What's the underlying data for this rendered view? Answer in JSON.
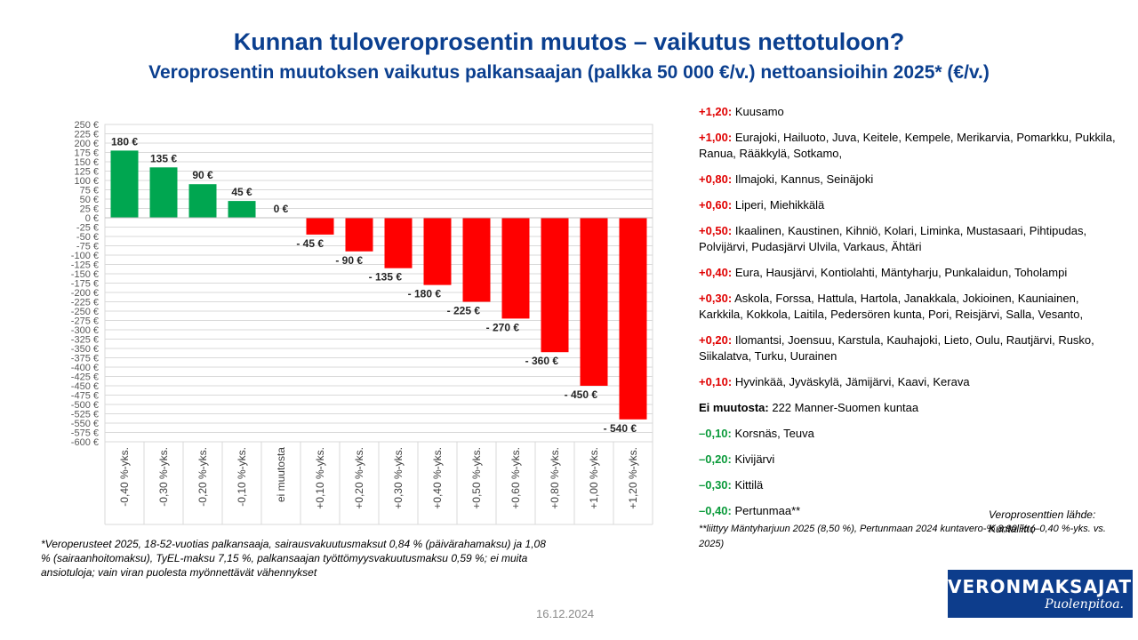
{
  "title": "Kunnan tuloveroprosentin muutos – vaikutus nettotuloon?",
  "subtitle": "Veroprosentin muutoksen vaikutus palkansaajan (palkka 50 000 €/v.) nettoansioihin 2025* (€/v.)",
  "chart_data": {
    "type": "bar",
    "title": "",
    "xlabel": "",
    "ylabel": "",
    "ylim": [
      -600,
      250
    ],
    "ytick_step": 25,
    "ytick_labels": [
      "250 €",
      "225 €",
      "200 €",
      "175 €",
      "150 €",
      "125 €",
      "100 €",
      "75 €",
      "50 €",
      "25 €",
      "0 €",
      "-25 €",
      "-50 €",
      "-75 €",
      "-100 €",
      "-125 €",
      "-150 €",
      "-175 €",
      "-200 €",
      "-225 €",
      "-250 €",
      "-275 €",
      "-300 €",
      "-325 €",
      "-350 €",
      "-375 €",
      "-400 €",
      "-425 €",
      "-450 €",
      "-475 €",
      "-500 €",
      "-525 €",
      "-550 €",
      "-575 €",
      "-600 €"
    ],
    "grid": true,
    "legend": "none",
    "categories": [
      "-0,40 %-yks.",
      "-0,30 %-yks.",
      "-0,20 %-yks.",
      "-0,10 %-yks.",
      "ei muutosta",
      "+0,10 %-yks.",
      "+0,20 %-yks.",
      "+0,30 %-yks.",
      "+0,40 %-yks.",
      "+0,50 %-yks.",
      "+0,60 %-yks.",
      "+0,80 %-yks.",
      "+1,00 %-yks.",
      "+1,20 %-yks."
    ],
    "values": [
      180,
      135,
      90,
      45,
      0,
      -45,
      -90,
      -135,
      -180,
      -225,
      -270,
      -360,
      -450,
      -540
    ],
    "data_labels": [
      "180 €",
      "135 €",
      "90 €",
      "45 €",
      "0 €",
      "- 45 €",
      "- 90 €",
      "- 135 €",
      "- 180 €",
      "- 225 €",
      "- 270 €",
      "- 360 €",
      "- 450 €",
      "- 540 €"
    ],
    "positive_color": "#00a650",
    "negative_color": "#ff0000",
    "grid_color": "#d9d9d9"
  },
  "municipalities": [
    {
      "key": "+1,20:",
      "color": "red",
      "text": " Kuusamo"
    },
    {
      "key": "+1,00:",
      "color": "red",
      "text": " Eurajoki, Hailuoto, Juva, Keitele, Kempele, Merikarvia, Pomarkku, Pukkila, Ranua, Rääkkylä, Sotkamo,"
    },
    {
      "key": "+0,80:",
      "color": "red",
      "text": " Ilmajoki, Kannus, Seinäjoki"
    },
    {
      "key": "+0,60:",
      "color": "red",
      "text": " Liperi, Miehikkälä"
    },
    {
      "key": "+0,50:",
      "color": "red",
      "text": " Ikaalinen, Kaustinen, Kihniö, Kolari, Liminka, Mustasaari, Pihtipudas, Polvijärvi, Pudasjärvi Ulvila, Varkaus, Ähtäri"
    },
    {
      "key": "+0,40:",
      "color": "red",
      "text": " Eura, Hausjärvi, Kontiolahti, Mäntyharju, Punkalaidun, Toholampi"
    },
    {
      "key": "+0,30:",
      "color": "red",
      "text": " Askola, Forssa, Hattula, Hartola, Janakkala, Jokioinen, Kauniainen, Karkkila, Kokkola, Laitila, Pedersören kunta, Pori, Reisjärvi, Salla, Vesanto,"
    },
    {
      "key": "+0,20:",
      "color": "red",
      "text": " Ilomantsi, Joensuu, Karstula, Kauhajoki, Lieto, Oulu, Rautjärvi, Rusko, Siikalatva, Turku, Uurainen"
    },
    {
      "key": "+0,10:",
      "color": "red",
      "text": " Hyvinkää, Jyväskylä, Jämijärvi, Kaavi, Kerava"
    },
    {
      "key": "Ei muutosta:",
      "color": "black",
      "text": " 222 Manner-Suomen kuntaa"
    },
    {
      "key": "–0,10:",
      "color": "green",
      "text": " Korsnäs, Teuva"
    },
    {
      "key": "–0,20:",
      "color": "green",
      "text": " Kivijärvi"
    },
    {
      "key": "–0,30:",
      "color": "green",
      "text": " Kittilä"
    },
    {
      "key": "–0,40:",
      "color": "green",
      "text": " Pertunmaa**"
    }
  ],
  "pertunmaa_note": "**liittyy Mäntyharjuun 2025 (8,50 %), Pertunmaan 2024 kuntavero-% 8,90 % (–0,40 %-yks. vs. 2025)",
  "source_note": "Veroprosenttien lähde: Kuntaliitto",
  "footnote": "*Veroperusteet 2025, 18-52-vuotias palkansaaja, sairausvakuutusmaksut 0,84 % (päivärahamaksu) ja 1,08 % (sairaanhoitomaksu), TyEL-maksu 7,15 %, palkansaajan työttömyysvakuutusmaksu 0,59 %; ei muita ansiotuloja; vain viran puolesta myönnettävät vähennykset",
  "date": "16.12.2024",
  "logo": {
    "line1": "VERONMAKSAJAT",
    "line2": "Puolenpitoa."
  },
  "colors": {
    "title": "#0b3f8f",
    "logo_bg": "#0d3d8c",
    "red_text": "#e00000",
    "green_text": "#0a9a3a"
  }
}
